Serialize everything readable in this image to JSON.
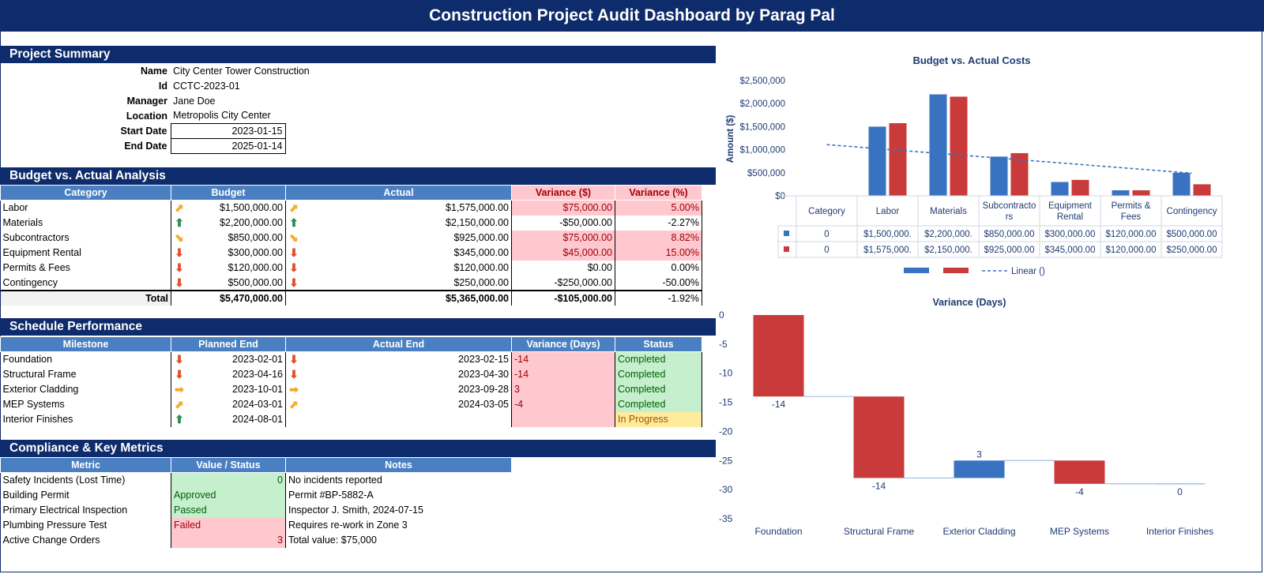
{
  "header": {
    "title": "Construction Project Audit Dashboard by Parag Pal"
  },
  "project_summary": {
    "heading": "Project Summary",
    "fields": [
      {
        "label": "Name",
        "value": "City Center Tower Construction"
      },
      {
        "label": "Id",
        "value": "CCTC-2023-01"
      },
      {
        "label": "Manager",
        "value": "Jane Doe"
      },
      {
        "label": "Location",
        "value": "Metropolis City Center"
      },
      {
        "label": "Start Date",
        "value": "2023-01-15"
      },
      {
        "label": "End Date",
        "value": "2025-01-14"
      }
    ]
  },
  "budget_analysis": {
    "heading": "Budget vs. Actual Analysis",
    "columns": [
      "Category",
      "Budget",
      "Actual",
      "Variance ($)",
      "Variance (%)"
    ],
    "rows": [
      {
        "category": "Labor",
        "budget_icon": "arrow-up-right-icon",
        "budget": "$1,500,000.00",
        "actual_icon": "arrow-up-right-icon",
        "actual": "$1,575,000.00",
        "variance": "$75,000.00",
        "variance_pct": "5.00%",
        "flag": true
      },
      {
        "category": "Materials",
        "budget_icon": "arrow-up-icon",
        "budget": "$2,200,000.00",
        "actual_icon": "arrow-up-icon",
        "actual": "$2,150,000.00",
        "variance": "-$50,000.00",
        "variance_pct": "-2.27%",
        "flag": false
      },
      {
        "category": "Subcontractors",
        "budget_icon": "arrow-down-right-icon",
        "budget": "$850,000.00",
        "actual_icon": "arrow-down-right-icon",
        "actual": "$925,000.00",
        "variance": "$75,000.00",
        "variance_pct": "8.82%",
        "flag": true
      },
      {
        "category": "Equipment Rental",
        "budget_icon": "arrow-down-icon",
        "budget": "$300,000.00",
        "actual_icon": "arrow-down-icon",
        "actual": "$345,000.00",
        "variance": "$45,000.00",
        "variance_pct": "15.00%",
        "flag": true
      },
      {
        "category": "Permits & Fees",
        "budget_icon": "arrow-down-icon",
        "budget": "$120,000.00",
        "actual_icon": "arrow-down-icon",
        "actual": "$120,000.00",
        "variance": "$0.00",
        "variance_pct": "0.00%",
        "flag": false
      },
      {
        "category": "Contingency",
        "budget_icon": "arrow-down-icon",
        "budget": "$500,000.00",
        "actual_icon": "arrow-down-icon",
        "actual": "$250,000.00",
        "variance": "-$250,000.00",
        "variance_pct": "-50.00%",
        "flag": false
      }
    ],
    "total": {
      "label": "Total",
      "budget": "$5,470,000.00",
      "actual": "$5,365,000.00",
      "variance": "-$105,000.00",
      "variance_pct": "-1.92%"
    }
  },
  "schedule": {
    "heading": "Schedule Performance",
    "columns": [
      "Milestone",
      "Planned End",
      "Actual End",
      "Variance (Days)",
      "Status"
    ],
    "rows": [
      {
        "milestone": "Foundation",
        "planned_icon": "arrow-down-icon",
        "planned": "2023-02-01",
        "actual_icon": "arrow-down-icon",
        "actual": "2023-02-15",
        "variance": "-14",
        "status": "Completed",
        "status_type": "green"
      },
      {
        "milestone": "Structural Frame",
        "planned_icon": "arrow-down-icon",
        "planned": "2023-04-16",
        "actual_icon": "arrow-down-icon",
        "actual": "2023-04-30",
        "variance": "-14",
        "status": "Completed",
        "status_type": "green"
      },
      {
        "milestone": "Exterior Cladding",
        "planned_icon": "arrow-right-icon",
        "planned": "2023-10-01",
        "actual_icon": "arrow-right-icon",
        "actual": "2023-09-28",
        "variance": "3",
        "status": "Completed",
        "status_type": "green"
      },
      {
        "milestone": "MEP Systems",
        "planned_icon": "arrow-up-right-icon",
        "planned": "2024-03-01",
        "actual_icon": "arrow-up-right-icon",
        "actual": "2024-03-05",
        "variance": "-4",
        "status": "Completed",
        "status_type": "green"
      },
      {
        "milestone": "Interior Finishes",
        "planned_icon": "arrow-up-icon",
        "planned": "2024-08-01",
        "actual_icon": "",
        "actual": "",
        "variance": "",
        "status": "In Progress",
        "status_type": "yellow"
      }
    ]
  },
  "compliance": {
    "heading": "Compliance & Key Metrics",
    "columns": [
      "Metric",
      "Value / Status",
      "Notes"
    ],
    "rows": [
      {
        "metric": "Safety Incidents (Lost Time)",
        "value": "0",
        "align": "right",
        "style": "green",
        "notes": "No incidents reported"
      },
      {
        "metric": "Building Permit",
        "value": "Approved",
        "align": "left",
        "style": "green",
        "notes": "Permit #BP-5882-A"
      },
      {
        "metric": "Primary Electrical Inspection",
        "value": "Passed",
        "align": "left",
        "style": "green",
        "notes": "Inspector J. Smith, 2024-07-15"
      },
      {
        "metric": "Plumbing Pressure Test",
        "value": "Failed",
        "align": "left",
        "style": "pink",
        "notes": "Requires re-work in Zone 3"
      },
      {
        "metric": "Active Change Orders",
        "value": "3",
        "align": "right",
        "style": "pink",
        "notes": "Total value: $75,000"
      }
    ]
  },
  "chart_data": [
    {
      "type": "bar",
      "title": "Budget vs. Actual Costs",
      "ylabel": "Amount ($)",
      "xlabel": "",
      "ylim": [
        0,
        2500000
      ],
      "yticks": [
        "$0",
        "$500,000",
        "$1,000,000",
        "$1,500,000",
        "$2,000,000",
        "$2,500,000"
      ],
      "categories": [
        "Category",
        "Labor",
        "Materials",
        "Subcontractors",
        "Equipment Rental",
        "Permits & Fees",
        "Contingency"
      ],
      "category_labels": [
        [
          "Category"
        ],
        [
          "Labor"
        ],
        [
          "Materials"
        ],
        [
          "Subcontracto",
          "rs"
        ],
        [
          "Equipment",
          "Rental"
        ],
        [
          "Permits &",
          "Fees"
        ],
        [
          "Contingency"
        ]
      ],
      "series": [
        {
          "values": [
            0,
            1500000,
            2200000,
            850000,
            300000,
            120000,
            500000
          ],
          "table": [
            "0",
            "$1,500,000.",
            "$2,200,000.",
            "$850,000.00",
            "$300,000.00",
            "$120,000.00",
            "$500,000.00"
          ],
          "color": "#3a72c2"
        },
        {
          "values": [
            0,
            1575000,
            2150000,
            925000,
            345000,
            120000,
            250000
          ],
          "table": [
            "0",
            "$1,575,000.",
            "$2,150,000.",
            "$925,000.00",
            "$345,000.00",
            "$120,000.00",
            "$250,000.00"
          ],
          "color": "#c93a3a"
        }
      ],
      "trendline": {
        "label": "Linear ()",
        "start": 1110000,
        "end": 490000
      },
      "legend": "bottom",
      "data_table": true,
      "grid": false
    },
    {
      "type": "waterfall",
      "title": "Variance  (Days)",
      "ylim": [
        -35,
        0
      ],
      "yticks": [
        "0",
        "-5",
        "-10",
        "-15",
        "-20",
        "-25",
        "-30",
        "-35"
      ],
      "categories": [
        "Foundation",
        "Structural Frame",
        "Exterior Cladding",
        "MEP Systems",
        "Interior Finishes"
      ],
      "values": [
        -14,
        -14,
        3,
        -4,
        0
      ],
      "labels": [
        "-14",
        "-14",
        "3",
        "-4",
        "0"
      ],
      "colors": {
        "negative": "#c93a3a",
        "positive": "#3a72c2"
      },
      "grid": false
    }
  ]
}
